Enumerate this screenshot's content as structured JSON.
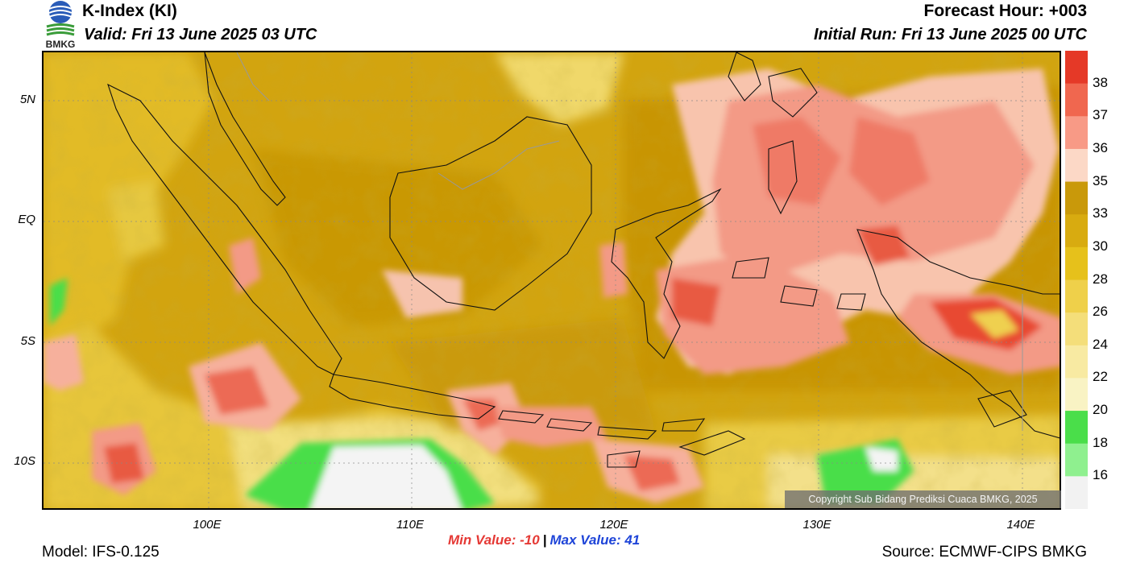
{
  "header": {
    "title": "K-Index (KI)",
    "valid": "Valid: Fri 13 June 2025 03 UTC",
    "forecast_hour": "Forecast Hour: +003",
    "initial_run": "Initial Run: Fri 13 June 2025 00 UTC",
    "logo_text": "BMKG"
  },
  "axes": {
    "lat_labels": [
      "5N",
      "EQ",
      "5S",
      "10S"
    ],
    "lon_labels": [
      "100E",
      "110E",
      "120E",
      "130E",
      "140E"
    ]
  },
  "colorbar": {
    "labels": [
      "38",
      "37",
      "36",
      "35",
      "33",
      "30",
      "28",
      "26",
      "24",
      "22",
      "20",
      "18",
      "16"
    ],
    "colors": [
      "#e53927",
      "#f0674f",
      "#f89a86",
      "#fcd8c6",
      "#c9990a",
      "#d8ab10",
      "#e6c11b",
      "#efd04a",
      "#f4de7a",
      "#f8eaa2",
      "#f9f3c4",
      "#4ade4a",
      "#8ff08f",
      "#f2f2f2"
    ]
  },
  "map": {
    "field_name": "K-Index",
    "copyright": "Copyright Sub Bidang Prediksi Cuaca BMKG, 2025"
  },
  "footer": {
    "min_value": "Min Value: -10",
    "separator": "|",
    "max_value": "Max Value:  41",
    "model": "Model: IFS-0.125",
    "source": "Source: ECMWF-CIPS BMKG"
  }
}
